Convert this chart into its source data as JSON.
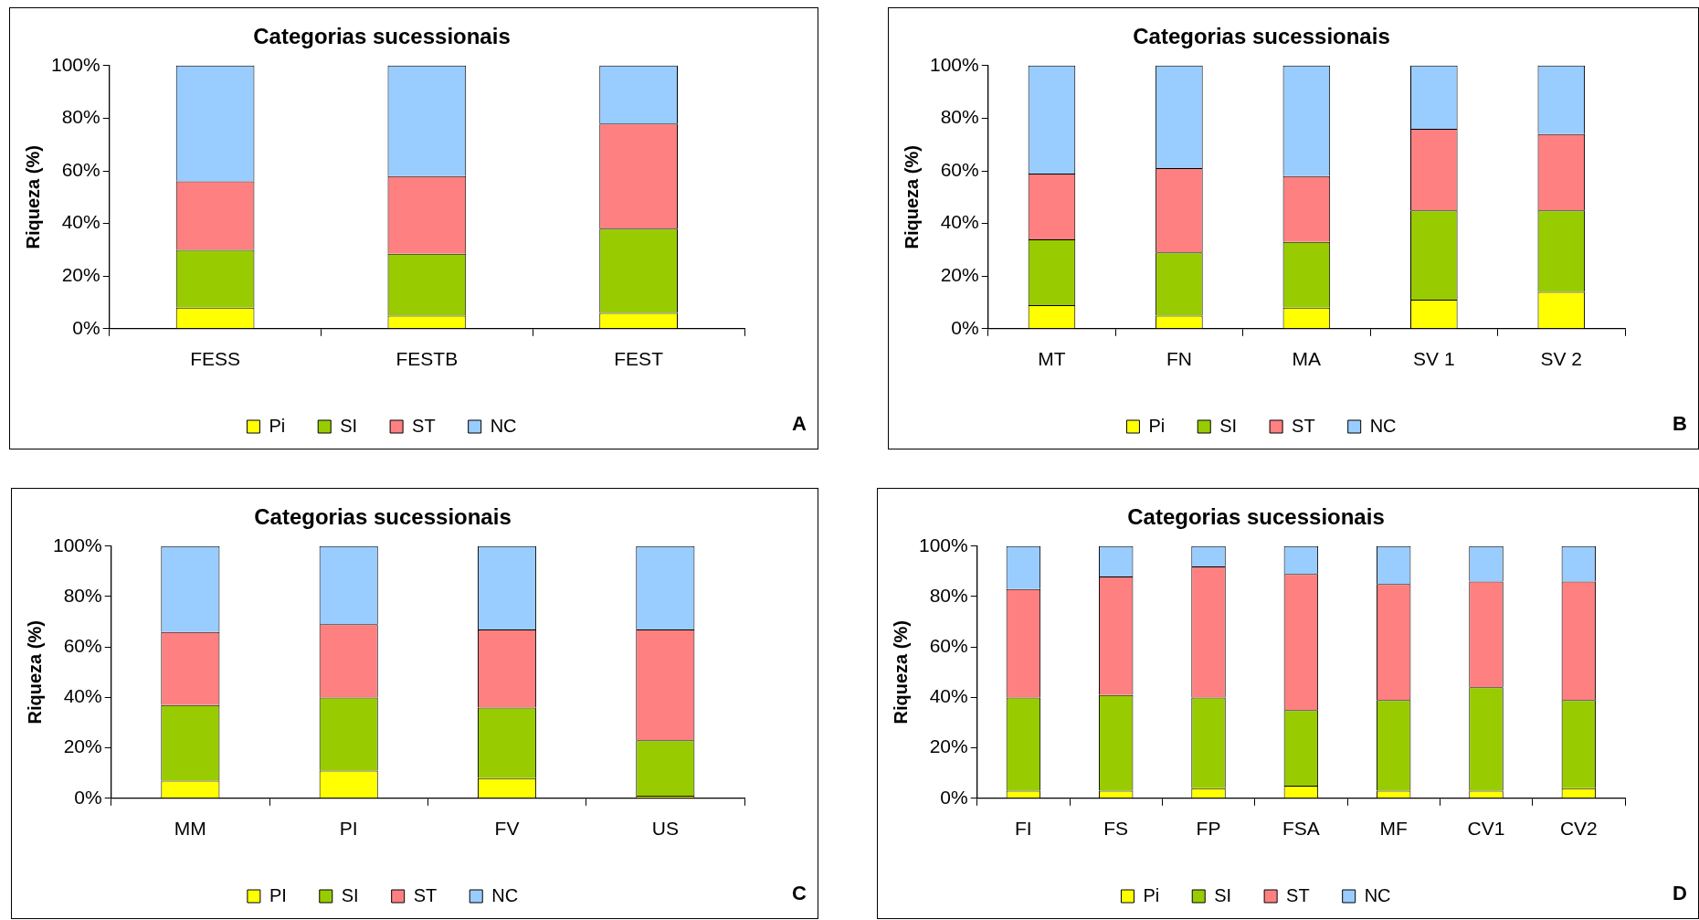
{
  "chart_data": [
    {
      "type": "bar",
      "stacked": true,
      "title": "Categorias sucessionais",
      "ylabel": "Riqueza (%)",
      "categories": [
        "FESS",
        "FESTB",
        "FEST"
      ],
      "ylim": [
        0,
        100
      ],
      "yticks": [
        {
          "value": 0,
          "label": "0%"
        },
        {
          "value": 20,
          "label": "20%"
        },
        {
          "value": 40,
          "label": "40%"
        },
        {
          "value": 60,
          "label": "60%"
        },
        {
          "value": 80,
          "label": "80%"
        },
        {
          "value": 100,
          "label": "100%"
        }
      ],
      "grid": false,
      "legend": "bottom",
      "annotations": [
        "A"
      ],
      "series": [
        {
          "name": "Pi",
          "color": "#ffff00",
          "values": [
            8,
            5,
            6
          ]
        },
        {
          "name": "SI",
          "color": "#99cc00",
          "values": [
            22,
            23.5,
            32
          ]
        },
        {
          "name": "ST",
          "color": "#ff8080",
          "values": [
            26,
            29.5,
            40
          ]
        },
        {
          "name": "NC",
          "color": "#99ccff",
          "values": [
            44,
            42,
            22
          ]
        }
      ]
    },
    {
      "type": "bar",
      "stacked": true,
      "title": "Categorias sucessionais",
      "ylabel": "Riqueza (%)",
      "categories": [
        "MT",
        "FN",
        "MA",
        "SV 1",
        "SV 2"
      ],
      "ylim": [
        0,
        100
      ],
      "yticks": [
        {
          "value": 0,
          "label": "0%"
        },
        {
          "value": 20,
          "label": "20%"
        },
        {
          "value": 40,
          "label": "40%"
        },
        {
          "value": 60,
          "label": "60%"
        },
        {
          "value": 80,
          "label": "80%"
        },
        {
          "value": 100,
          "label": "100%"
        }
      ],
      "grid": false,
      "legend": "bottom",
      "annotations": [
        "B"
      ],
      "series": [
        {
          "name": "Pi",
          "color": "#ffff00",
          "values": [
            9,
            5,
            8,
            11,
            14
          ]
        },
        {
          "name": "SI",
          "color": "#99cc00",
          "values": [
            25,
            24,
            25,
            34,
            31
          ]
        },
        {
          "name": "ST",
          "color": "#ff8080",
          "values": [
            25,
            32,
            25,
            31,
            29
          ]
        },
        {
          "name": "NC",
          "color": "#99ccff",
          "values": [
            41,
            39,
            42,
            24,
            26
          ]
        }
      ]
    },
    {
      "type": "bar",
      "stacked": true,
      "title": "Categorias sucessionais",
      "ylabel": "Riqueza (%)",
      "categories": [
        "MM",
        "PI",
        "FV",
        "US"
      ],
      "ylim": [
        0,
        100
      ],
      "yticks": [
        {
          "value": 0,
          "label": "0%"
        },
        {
          "value": 20,
          "label": "20%"
        },
        {
          "value": 40,
          "label": "40%"
        },
        {
          "value": 60,
          "label": "60%"
        },
        {
          "value": 80,
          "label": "80%"
        },
        {
          "value": 100,
          "label": "100%"
        }
      ],
      "grid": false,
      "legend": "bottom",
      "annotations": [
        "C"
      ],
      "series": [
        {
          "name": "PI",
          "color": "#ffff00",
          "values": [
            7,
            11,
            8,
            1
          ]
        },
        {
          "name": "SI",
          "color": "#99cc00",
          "values": [
            30,
            29,
            28,
            22
          ]
        },
        {
          "name": "ST",
          "color": "#ff8080",
          "values": [
            29,
            29,
            31,
            44
          ]
        },
        {
          "name": "NC",
          "color": "#99ccff",
          "values": [
            34,
            31,
            33,
            33
          ]
        }
      ]
    },
    {
      "type": "bar",
      "stacked": true,
      "title": "Categorias sucessionais",
      "ylabel": "Riqueza (%)",
      "categories": [
        "FI",
        "FS",
        "FP",
        "FSA",
        "MF",
        "CV1",
        "CV2"
      ],
      "ylim": [
        0,
        100
      ],
      "yticks": [
        {
          "value": 0,
          "label": "0%"
        },
        {
          "value": 20,
          "label": "20%"
        },
        {
          "value": 40,
          "label": "40%"
        },
        {
          "value": 60,
          "label": "60%"
        },
        {
          "value": 80,
          "label": "80%"
        },
        {
          "value": 100,
          "label": "100%"
        }
      ],
      "grid": false,
      "legend": "bottom",
      "annotations": [
        "D"
      ],
      "series": [
        {
          "name": "Pi",
          "color": "#ffff00",
          "values": [
            3,
            3,
            4,
            5,
            3,
            3,
            4
          ]
        },
        {
          "name": "SI",
          "color": "#99cc00",
          "values": [
            37,
            38,
            36,
            30,
            36,
            41,
            35
          ]
        },
        {
          "name": "ST",
          "color": "#ff8080",
          "values": [
            43,
            47,
            52,
            54,
            46,
            42,
            47
          ]
        },
        {
          "name": "NC",
          "color": "#99ccff",
          "values": [
            17,
            12,
            8,
            11,
            15,
            14,
            14
          ]
        }
      ]
    }
  ]
}
